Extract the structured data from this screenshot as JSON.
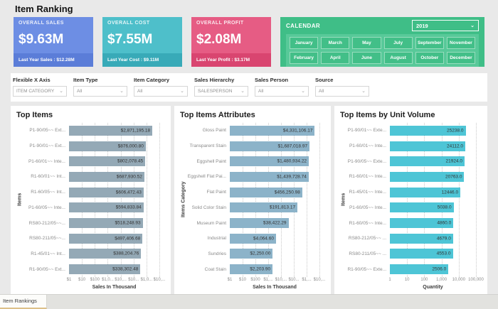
{
  "page": {
    "title": "Item Ranking"
  },
  "kpis": [
    {
      "label": "OVERALL SALES",
      "value": "$9.63M",
      "footer": "Last Year Sales : $12.28M",
      "color": "#6d8ee4",
      "footer_color": "#5b7dd8"
    },
    {
      "label": "OVERALL COST",
      "value": "$7.55M",
      "footer": "Last Year Cost : $9.11M",
      "color": "#4ebfca",
      "footer_color": "#38aab8"
    },
    {
      "label": "OVERALL PROFIT",
      "value": "$2.08M",
      "footer": "Last Year Profit : $3.17M",
      "color": "#e65c84",
      "footer_color": "#d94570"
    }
  ],
  "calendar": {
    "label": "CALENDAR",
    "year": "2019",
    "color": "#3fbe87",
    "panel_color": "#58c999",
    "button_color": "#42bf88",
    "months_row1": [
      "January",
      "March",
      "May",
      "July",
      "September",
      "November"
    ],
    "months_row2": [
      "February",
      "April",
      "June",
      "August",
      "October",
      "December"
    ]
  },
  "filters": [
    {
      "label": "Flexible X Axis",
      "value": "ITEM CATEGORY"
    },
    {
      "label": "Item Type",
      "value": "All"
    },
    {
      "label": "Item Category",
      "value": "All"
    },
    {
      "label": "Sales Hierarchy",
      "value": "SALESPERSON"
    },
    {
      "label": "Sales Person",
      "value": "All"
    },
    {
      "label": "Source",
      "value": "All"
    }
  ],
  "chart_data": [
    {
      "type": "bar",
      "orientation": "horizontal",
      "xscale": "log",
      "title": "Top Items",
      "xlabel": "Sales In Thousand",
      "ylabel": "Items",
      "bar_color": "#94a9b6",
      "grid": true,
      "xticks": [
        "$1",
        "$10",
        "$100",
        "$1,0...",
        "$10,...",
        "$10...",
        "$1,0...",
        "$10,..."
      ],
      "categories": [
        "P1-90/05~~ Ext...",
        "P1-90/01~~ Ext...",
        "P1-60/01~~ Inte...",
        "R1-60/01~~ Int...",
        "R1-60/05~~ Int...",
        "P1-60/05~~ Inte...",
        "RS80-212/05~~...",
        "RS80-211/05~~...",
        "R1-45/01~~ Int...",
        "R1-90/05~~ Ext..."
      ],
      "values": [
        2871195.18,
        876000.8,
        802078.45,
        687930.52,
        606472.43,
        594833.84,
        518248.93,
        497406.68,
        388204.76,
        338302.48
      ],
      "value_labels": [
        "$2,871,195.18",
        "$876,000.80",
        "$802,078.45",
        "$687,930.52",
        "$606,472.43",
        "$594,833.84",
        "$518,248.93",
        "$497,406.68",
        "$388,204.76",
        "$338,302.48"
      ]
    },
    {
      "type": "bar",
      "orientation": "horizontal",
      "xscale": "log",
      "title": "Top Items Attributes",
      "xlabel": "Sales In Thousand",
      "ylabel": "Items Category",
      "bar_color": "#8cb3c9",
      "grid": true,
      "xticks": [
        "$1",
        "$10",
        "$100",
        "$1,...",
        "$10,...",
        "$10...",
        "$1,...",
        "$10,..."
      ],
      "categories": [
        "Gloss Paint",
        "Transparent Stain",
        "Eggshell Paint",
        "Eggshell Flat Pai...",
        "Flat Paint",
        "Solid Color Stain",
        "Museum Paint",
        "Industrial",
        "Sundries",
        "Coat Stain"
      ],
      "values": [
        4331106.17,
        1687018.97,
        1480934.22,
        1439728.74,
        456250.98,
        191813.17,
        38422.29,
        4064.6,
        2250.0,
        2203.9
      ],
      "value_labels": [
        "$4,331,106.17",
        "$1,687,018.97",
        "$1,480,934.22",
        "$1,439,728.74",
        "$456,250.98",
        "$191,813.17",
        "$38,422.29",
        "$4,064.60",
        "$2,250.00",
        "$2,203.90"
      ]
    },
    {
      "type": "bar",
      "orientation": "horizontal",
      "xscale": "log",
      "title": "Top Items by Unit Volume",
      "xlabel": "Quantity",
      "ylabel": "Items",
      "bar_color": "#4ec5d6",
      "grid": true,
      "xticks": [
        "1",
        "10",
        "100",
        "1,000",
        "10,000",
        "100,000"
      ],
      "categories": [
        "P1-90/01~~ Exte...",
        "P1-60/01~~ Inte...",
        "P1-90/05~~ Exte...",
        "R1-60/01~~ Inte...",
        "R1-45/01~~ Inte...",
        "P1-60/05~~ Inte...",
        "R1-60/05~~ Inte...",
        "RS80-212/05~~ ...",
        "RS80-211/05~~ ...",
        "R1-90/05~~ Exte..."
      ],
      "values": [
        25238,
        24112,
        21924,
        20763,
        12446,
        5038,
        4860,
        4679,
        4553,
        2506
      ],
      "value_labels": [
        "25238.0",
        "24112.0",
        "21924.0",
        "20763.0",
        "12446.0",
        "5038.0",
        "4860.0",
        "4679.0",
        "4553.0",
        "2506.0"
      ]
    }
  ],
  "bottom_bar": {
    "tab_label": "Item Rankings"
  }
}
